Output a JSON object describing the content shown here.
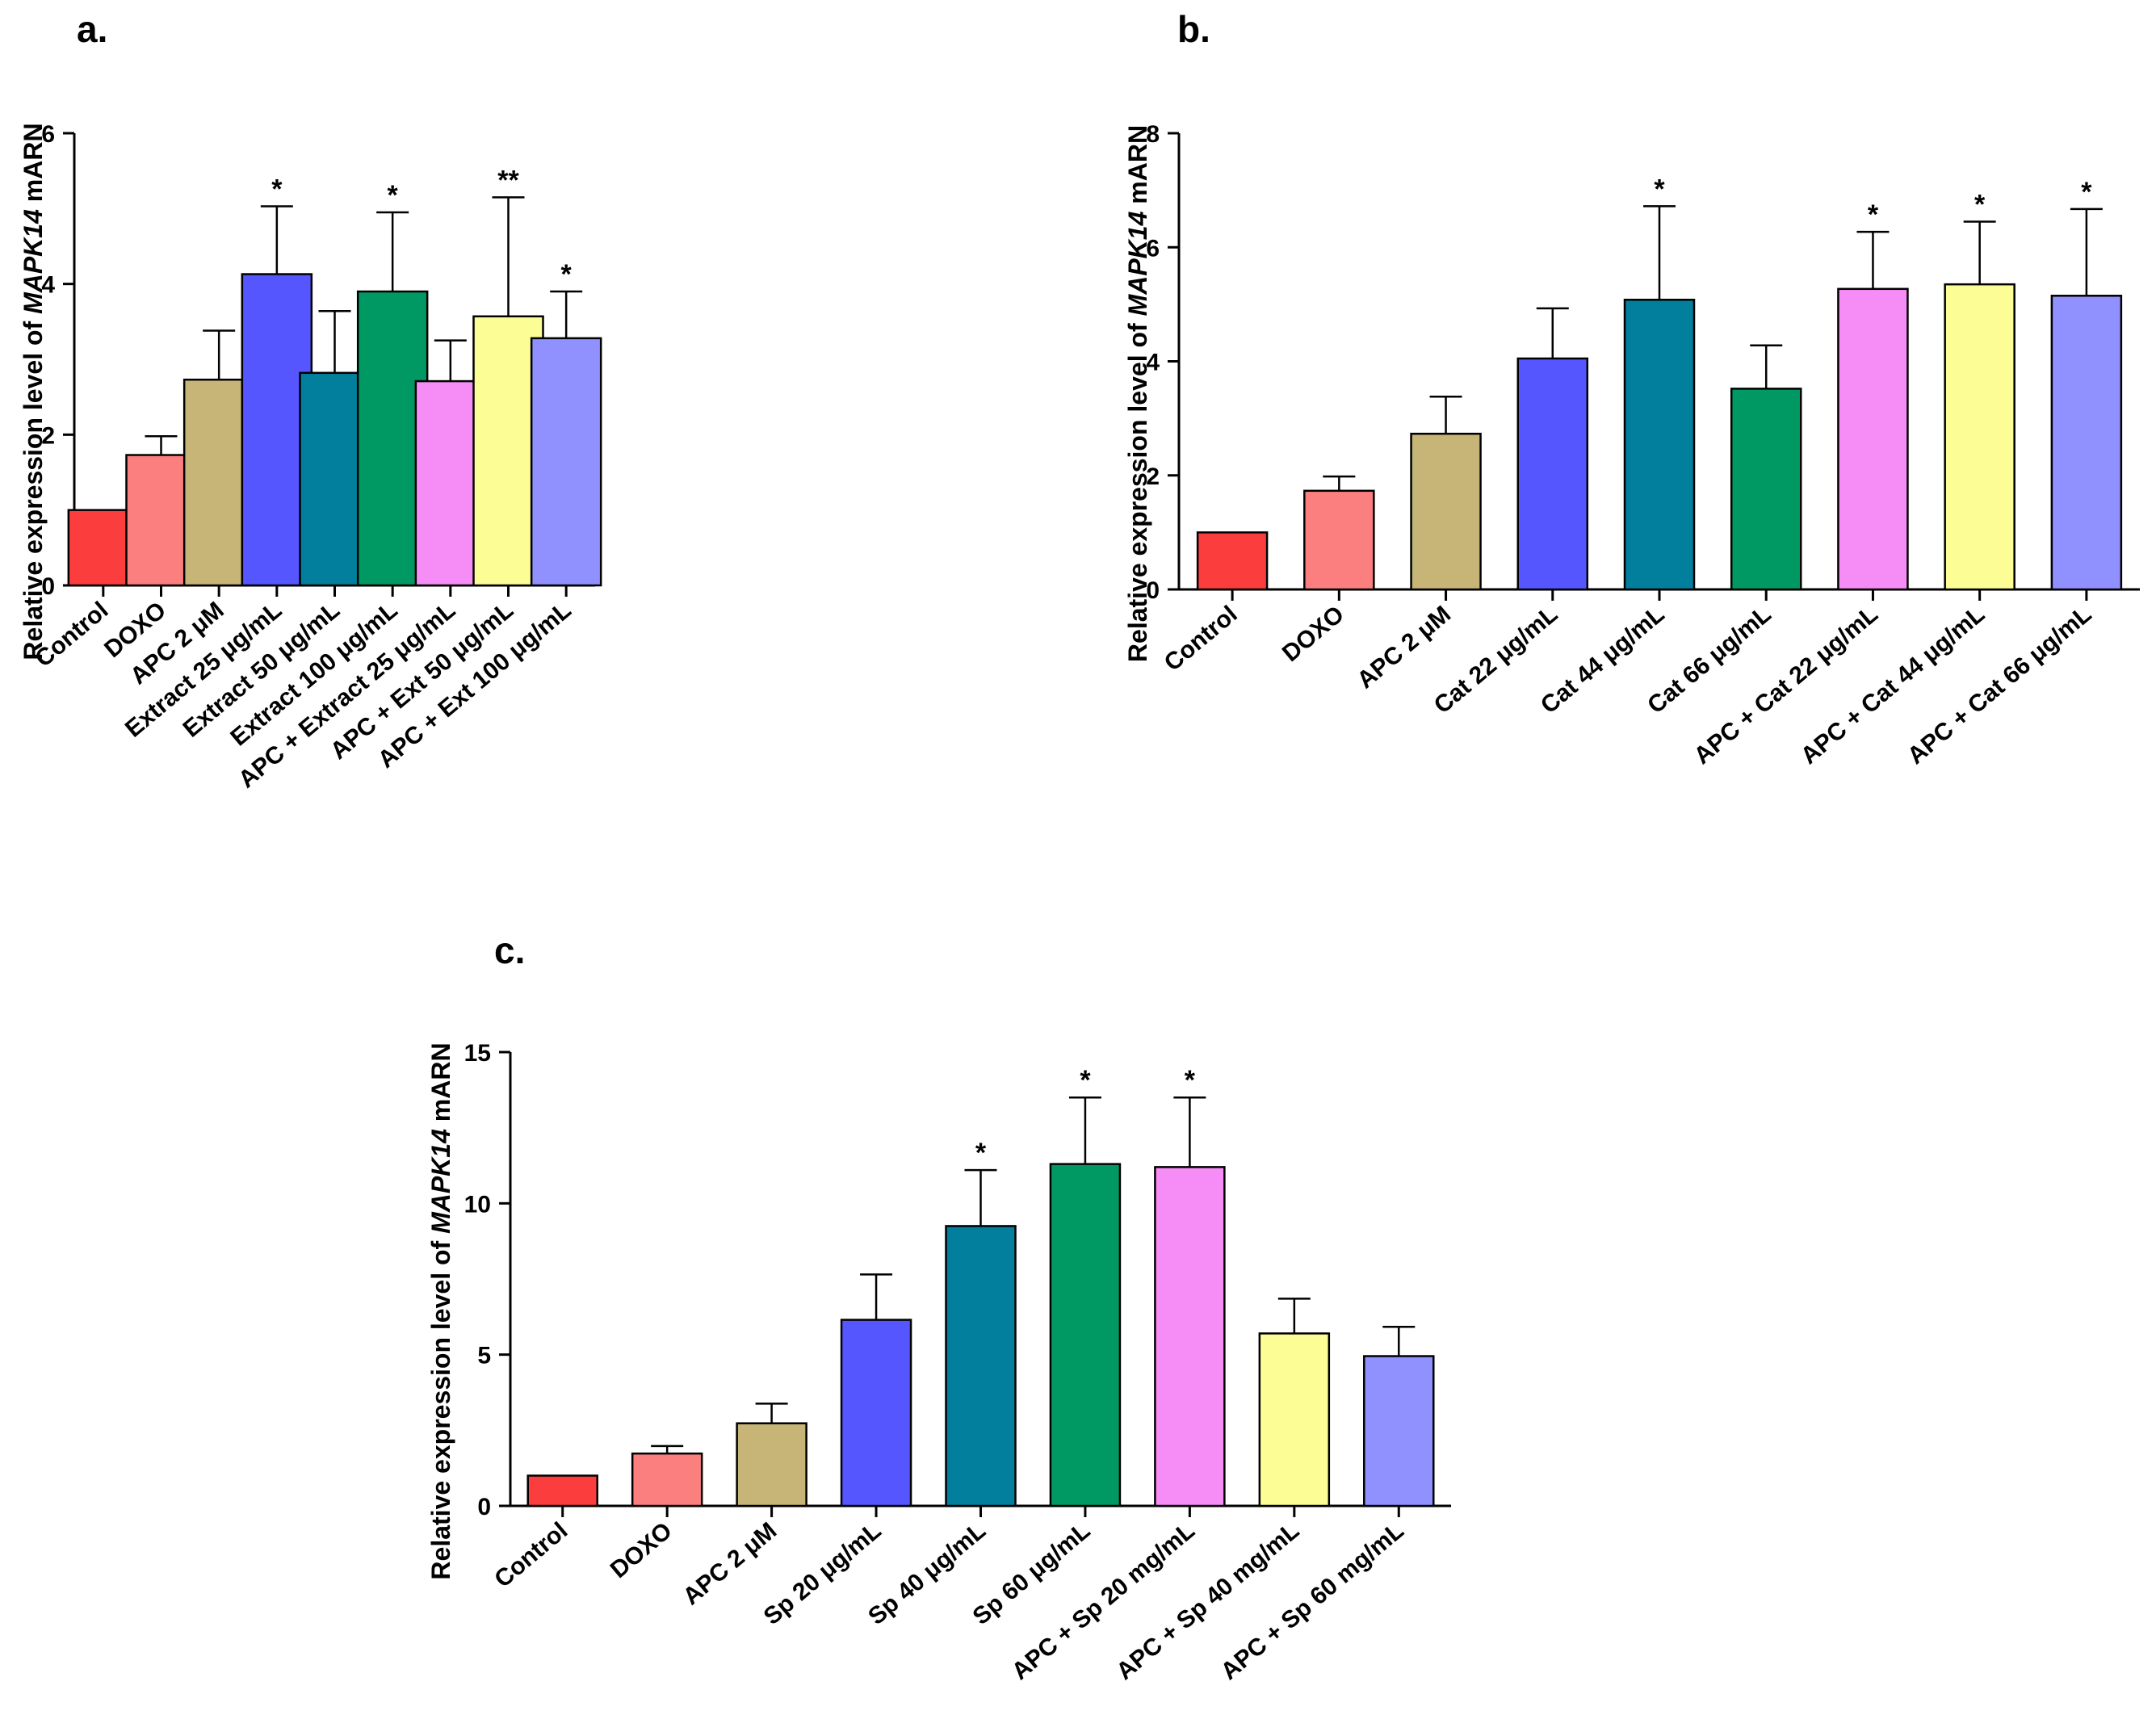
{
  "chart_data": [
    {
      "panel": "a.",
      "type": "bar",
      "ylabel_prefix": "Relative expression level of ",
      "ylabel_gene": "MAPK14",
      "ylabel_suffix": " mARN",
      "ylim": [
        0,
        6
      ],
      "yticks": [
        0,
        2,
        4,
        6
      ],
      "categories": [
        "Control",
        "DOXO",
        "APC 2 μM",
        "Extract 25 μg/mL",
        "Extract 50 μg/mL",
        "Extract 100 μg/mL",
        "APC + Extract 25 μg/mL",
        "APC + Ext 50 μg/mL",
        "APC + Ext 100 μg/mL"
      ],
      "values": [
        1.0,
        1.73,
        2.73,
        4.13,
        2.82,
        3.9,
        2.71,
        3.57,
        3.28
      ],
      "errors": [
        0.0,
        0.25,
        0.65,
        0.9,
        0.82,
        1.05,
        0.54,
        1.58,
        0.62
      ],
      "significance": [
        "",
        "",
        "",
        "*",
        "",
        "*",
        "",
        "**",
        "*"
      ],
      "colors": [
        "#fb3d3d",
        "#fc7f7f",
        "#c6b577",
        "#5656ff",
        "#027f9c",
        "#019963",
        "#f68cf5",
        "#fdfd96",
        "#9190ff"
      ]
    },
    {
      "panel": "b.",
      "type": "bar",
      "ylabel_prefix": "Relative expression level of ",
      "ylabel_gene": "MAPK14",
      "ylabel_suffix": " mARN",
      "ylim": [
        0,
        8
      ],
      "yticks": [
        0,
        2,
        4,
        6,
        8
      ],
      "categories": [
        "Control",
        "DOXO",
        "APC 2 μM",
        "Cat 22 μg/mL",
        "Cat 44 μg/mL",
        "Cat 66 μg/mL",
        "APC + Cat 22 μg/mL",
        "APC + Cat 44 μg/mL",
        "APC + Cat 66 μg/mL"
      ],
      "values": [
        1.0,
        1.73,
        2.73,
        4.05,
        5.08,
        3.52,
        5.27,
        5.35,
        5.15
      ],
      "errors": [
        0.0,
        0.25,
        0.65,
        0.88,
        1.64,
        0.76,
        1.0,
        1.1,
        1.52
      ],
      "significance": [
        "",
        "",
        "",
        "",
        "*",
        "",
        "*",
        "*",
        "*"
      ],
      "colors": [
        "#fb3d3d",
        "#fc7f7f",
        "#c6b577",
        "#5656ff",
        "#027f9c",
        "#019963",
        "#f68cf5",
        "#fdfd96",
        "#9190ff"
      ]
    },
    {
      "panel": "c.",
      "type": "bar",
      "ylabel_prefix": "Relative expression level of ",
      "ylabel_gene": "MAPK14",
      "ylabel_suffix": " mARN",
      "ylim": [
        0,
        15
      ],
      "yticks": [
        0,
        5,
        10,
        15
      ],
      "categories": [
        "Control",
        "DOXO",
        "APC 2 μM",
        "Sp 20 μg/mL",
        "Sp 40 μg/mL",
        "Sp 60 μg/mL",
        "APC + Sp 20 mg/mL",
        "APC + Sp 40 mg/mL",
        "APC + Sp 60 mg/mL"
      ],
      "values": [
        1.0,
        1.73,
        2.73,
        6.15,
        9.25,
        11.3,
        11.2,
        5.7,
        4.95
      ],
      "errors": [
        0.0,
        0.25,
        0.65,
        1.5,
        1.85,
        2.2,
        2.3,
        1.15,
        0.97
      ],
      "significance": [
        "",
        "",
        "",
        "",
        "*",
        "*",
        "*",
        "",
        ""
      ],
      "colors": [
        "#fb3d3d",
        "#fc7f7f",
        "#c6b577",
        "#5656ff",
        "#027f9c",
        "#019963",
        "#f68cf5",
        "#fdfd96",
        "#9190ff"
      ]
    }
  ]
}
